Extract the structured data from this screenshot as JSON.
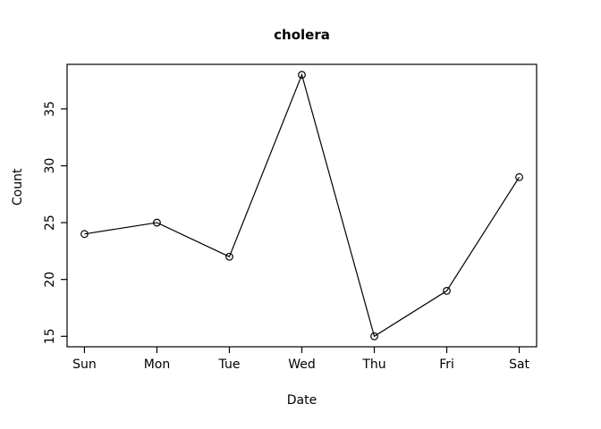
{
  "chart_data": {
    "type": "line",
    "title": "cholera",
    "xlabel": "Date",
    "ylabel": "Count",
    "categories": [
      "Sun",
      "Mon",
      "Tue",
      "Wed",
      "Thu",
      "Fri",
      "Sat"
    ],
    "values": [
      24,
      25,
      22,
      38,
      15,
      19,
      29
    ],
    "yticks": [
      15,
      20,
      25,
      30,
      35
    ],
    "ylim": [
      14.08,
      38.92
    ],
    "xlim": [
      0.76,
      7.24
    ],
    "grid": false,
    "legend": "none",
    "marker": "open-circle",
    "line_color": "#000000",
    "axis_color": "#000000",
    "background_color": "#ffffff"
  }
}
